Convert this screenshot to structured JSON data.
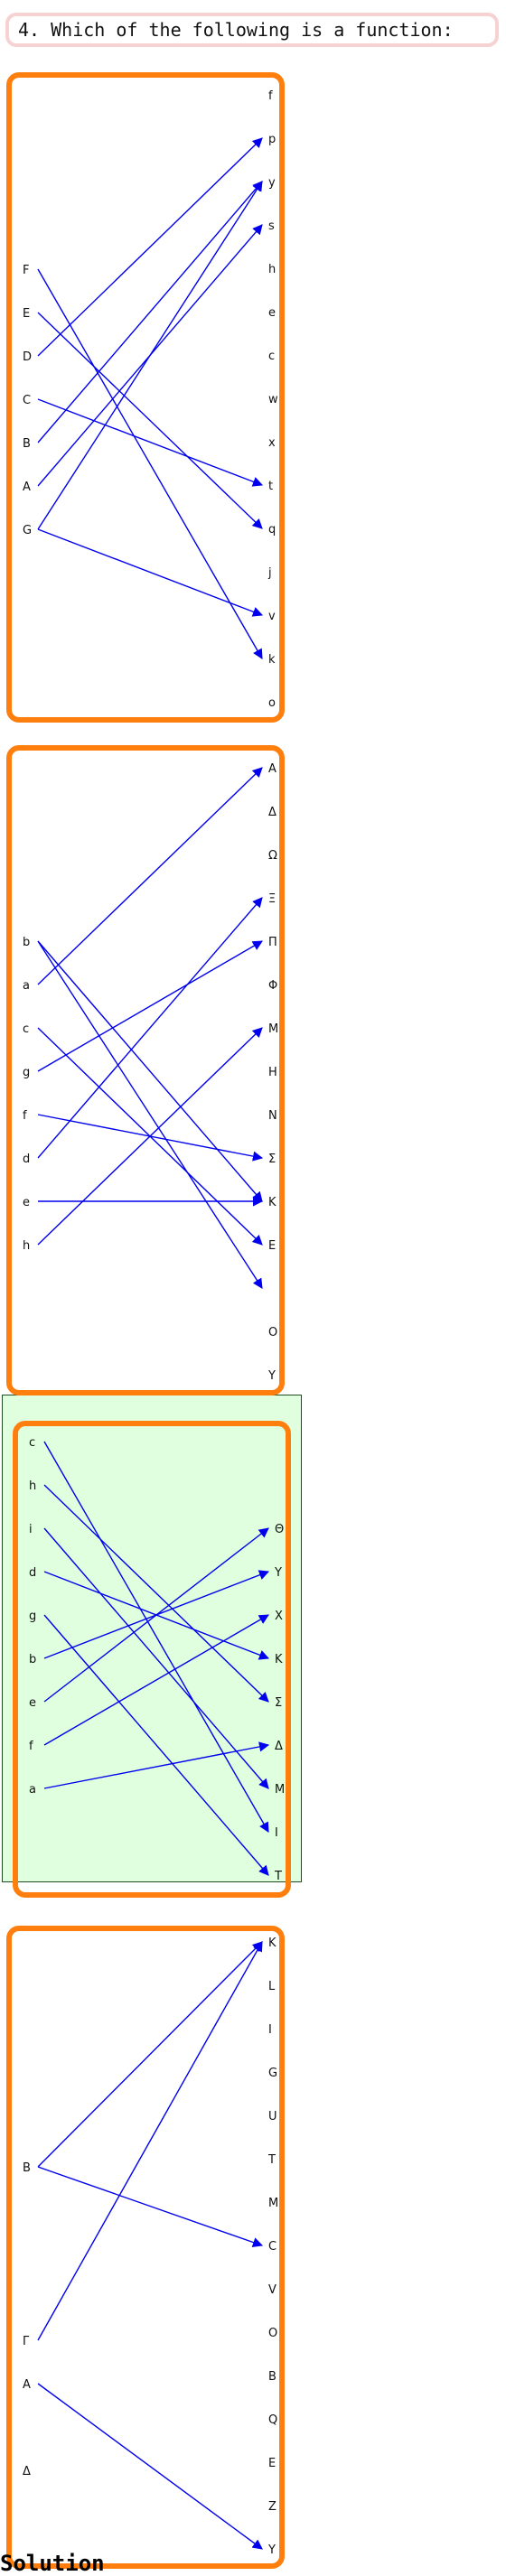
{
  "question": "4. Which of the following is a function:",
  "solution_label": "Solution",
  "arrow_color": "#0000ee",
  "option_border_color": "#ff7f0e",
  "selected_option_bg": "#dfffdf",
  "options": [
    {
      "domain": [
        "F",
        "E",
        "D",
        "C",
        "B",
        "A",
        "G"
      ],
      "codomain": [
        "f",
        "p",
        "y",
        "s",
        "h",
        "e",
        "c",
        "w",
        "x",
        "t",
        "q",
        "j",
        "v",
        "k",
        "o"
      ],
      "mappings": [
        [
          "F",
          "k"
        ],
        [
          "E",
          "q"
        ],
        [
          "D",
          "p"
        ],
        [
          "C",
          "t"
        ],
        [
          "B",
          "y"
        ],
        [
          "A",
          "s"
        ],
        [
          "G",
          "y"
        ],
        [
          "G",
          "v"
        ]
      ],
      "selected": false
    },
    {
      "domain": [
        "b",
        "a",
        "c",
        "g",
        "f",
        "d",
        "e",
        "h"
      ],
      "codomain": [
        "Α",
        "Δ",
        "Ω",
        "Ξ",
        "Π",
        "Φ",
        "Μ",
        "Η",
        "Ν",
        "Σ",
        "Κ",
        "Ε",
        "",
        "Ο",
        "Υ"
      ],
      "mappings": [
        [
          "b",
          "Κ"
        ],
        [
          "b",
          ""
        ],
        [
          "a",
          "Α"
        ],
        [
          "c",
          "Ε"
        ],
        [
          "g",
          "Π"
        ],
        [
          "f",
          "Σ"
        ],
        [
          "d",
          "Ξ"
        ],
        [
          "e",
          "Κ"
        ],
        [
          "h",
          "Μ"
        ]
      ],
      "selected": false
    },
    {
      "domain": [
        "c",
        "h",
        "i",
        "d",
        "g",
        "b",
        "e",
        "f",
        "a"
      ],
      "codomain": [
        "Θ",
        "Υ",
        "Χ",
        "Κ",
        "Σ",
        "Δ",
        "Μ",
        "Ι",
        "Τ"
      ],
      "mappings": [
        [
          "c",
          "Ι"
        ],
        [
          "h",
          "Σ"
        ],
        [
          "i",
          "Μ"
        ],
        [
          "d",
          "Κ"
        ],
        [
          "g",
          "Τ"
        ],
        [
          "b",
          "Υ"
        ],
        [
          "e",
          "Θ"
        ],
        [
          "f",
          "Χ"
        ],
        [
          "a",
          "Δ"
        ]
      ],
      "selected": true
    },
    {
      "domain": [
        "B",
        "",
        "",
        "",
        "Γ",
        "Α",
        "",
        "Δ"
      ],
      "codomain": [
        "K",
        "L",
        "I",
        "G",
        "U",
        "T",
        "M",
        "C",
        "V",
        "O",
        "B",
        "Q",
        "E",
        "Z",
        "Y"
      ],
      "mappings": [
        [
          "B",
          "K"
        ],
        [
          "B",
          "C"
        ],
        [
          "Γ",
          "K"
        ],
        [
          "Α",
          "Y"
        ]
      ],
      "selected": false
    }
  ]
}
